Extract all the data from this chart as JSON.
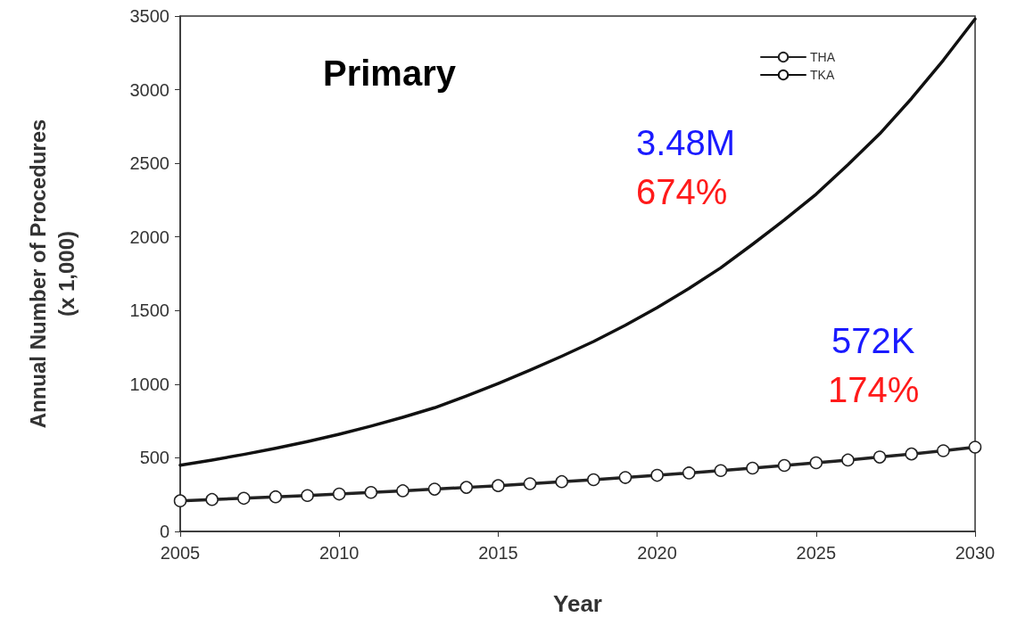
{
  "chart_data": {
    "type": "line",
    "xlabel": "Year",
    "ylabel": "Annual Number of Procedures\n(x 1,000)",
    "x": [
      2005,
      2006,
      2007,
      2008,
      2009,
      2010,
      2011,
      2012,
      2013,
      2014,
      2015,
      2016,
      2017,
      2018,
      2019,
      2020,
      2021,
      2022,
      2023,
      2024,
      2025,
      2026,
      2027,
      2028,
      2029,
      2030
    ],
    "series": [
      {
        "name": "THA",
        "color": "#222222",
        "marker": "circle",
        "values": [
          208,
          217,
          225,
          235,
          244,
          254,
          265,
          276,
          287,
          299,
          311,
          324,
          338,
          351,
          366,
          381,
          397,
          413,
          430,
          448,
          466,
          485,
          505,
          526,
          548,
          572
        ]
      },
      {
        "name": "TKA",
        "color": "#111111",
        "marker": "none",
        "values": [
          450,
          485,
          523,
          565,
          610,
          660,
          715,
          775,
          840,
          920,
          1005,
          1095,
          1190,
          1290,
          1400,
          1520,
          1650,
          1790,
          1950,
          2115,
          2290,
          2490,
          2700,
          2940,
          3200,
          3480
        ]
      }
    ],
    "xlim": [
      2005,
      2030
    ],
    "xticks": [
      2005,
      2010,
      2015,
      2020,
      2025,
      2030
    ],
    "ylim": [
      0,
      3500
    ],
    "yticks": [
      0,
      500,
      1000,
      1500,
      2000,
      2500,
      3000,
      3500
    ],
    "grid": false,
    "legend": "top right",
    "line_style": "solid",
    "annotations": [
      "Primary",
      "3.48M",
      "674%",
      "572K",
      "174%"
    ]
  }
}
